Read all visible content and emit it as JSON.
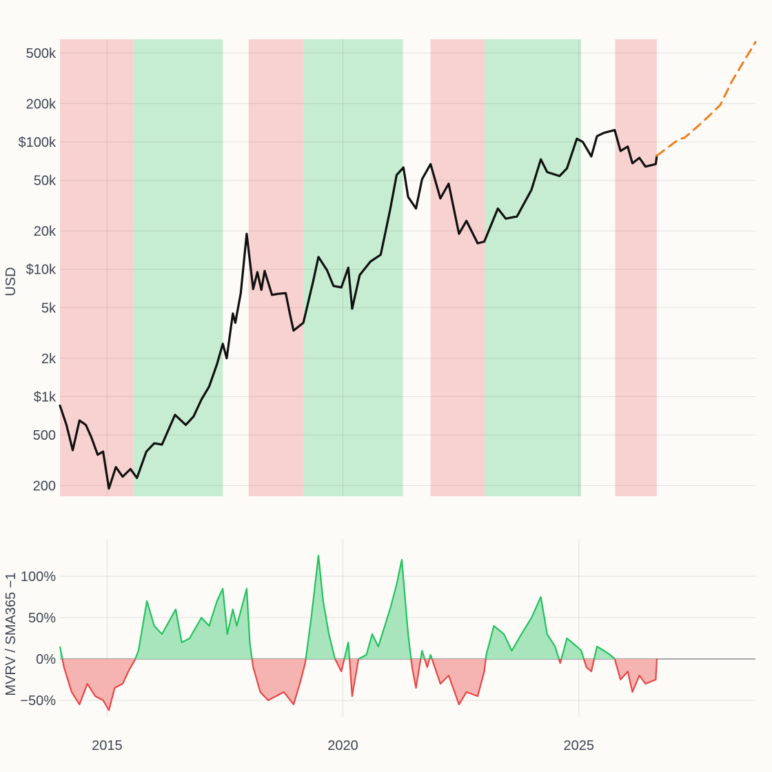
{
  "chart_data": [
    {
      "type": "line",
      "ylabel": "USD",
      "yscale": "log",
      "ylim": [
        165,
        640000
      ],
      "xlim": [
        "2014-01-01",
        "2028-09-30"
      ],
      "yticks": [
        {
          "value": 200,
          "label": "200"
        },
        {
          "value": 500,
          "label": "500"
        },
        {
          "value": 1000,
          "label": "$1k"
        },
        {
          "value": 2000,
          "label": "2k"
        },
        {
          "value": 5000,
          "label": "5k"
        },
        {
          "value": 10000,
          "label": "$10k"
        },
        {
          "value": 20000,
          "label": "20k"
        },
        {
          "value": 50000,
          "label": "50k"
        },
        {
          "value": 100000,
          "label": "$100k"
        },
        {
          "value": 200000,
          "label": "200k"
        },
        {
          "value": 500000,
          "label": "500k"
        }
      ],
      "regions": [
        {
          "start": "2014-01-01",
          "end": "2015-07-25",
          "phase": "bear",
          "color": "#f8d2d0"
        },
        {
          "start": "2015-07-25",
          "end": "2017-06-15",
          "phase": "bull",
          "color": "#c6edd2"
        },
        {
          "start": "2018-01-01",
          "end": "2019-03-01",
          "phase": "bear",
          "color": "#f8d2d0"
        },
        {
          "start": "2019-03-01",
          "end": "2021-04-10",
          "phase": "bull",
          "color": "#c6edd2"
        },
        {
          "start": "2021-11-10",
          "end": "2023-01-05",
          "phase": "bear",
          "color": "#f8d2d0"
        },
        {
          "start": "2023-01-05",
          "end": "2025-01-20",
          "phase": "bull",
          "color": "#c6edd2"
        },
        {
          "start": "2025-10-10",
          "end": "2026-08-28",
          "phase": "bear",
          "color": "#f8d2d0"
        }
      ],
      "series": [
        {
          "style": "solid",
          "color": "#111111",
          "points": [
            [
              "2014-01-01",
              850
            ],
            [
              "2014-02-20",
              600
            ],
            [
              "2014-04-10",
              380
            ],
            [
              "2014-06-01",
              650
            ],
            [
              "2014-07-20",
              600
            ],
            [
              "2014-09-01",
              480
            ],
            [
              "2014-10-20",
              350
            ],
            [
              "2014-12-01",
              370
            ],
            [
              "2015-01-15",
              190
            ],
            [
              "2015-03-10",
              280
            ],
            [
              "2015-05-01",
              235
            ],
            [
              "2015-07-01",
              270
            ],
            [
              "2015-08-20",
              230
            ],
            [
              "2015-11-01",
              370
            ],
            [
              "2016-01-01",
              430
            ],
            [
              "2016-03-01",
              420
            ],
            [
              "2016-06-10",
              720
            ],
            [
              "2016-09-01",
              600
            ],
            [
              "2016-11-01",
              700
            ],
            [
              "2017-01-01",
              950
            ],
            [
              "2017-03-01",
              1200
            ],
            [
              "2017-05-01",
              1800
            ],
            [
              "2017-06-15",
              2600
            ],
            [
              "2017-07-15",
              2000
            ],
            [
              "2017-09-01",
              4500
            ],
            [
              "2017-09-20",
              3800
            ],
            [
              "2017-11-01",
              6500
            ],
            [
              "2017-12-17",
              19000
            ],
            [
              "2018-02-05",
              7000
            ],
            [
              "2018-03-10",
              9500
            ],
            [
              "2018-04-10",
              6900
            ],
            [
              "2018-05-05",
              9700
            ],
            [
              "2018-07-01",
              6300
            ],
            [
              "2018-08-10",
              6400
            ],
            [
              "2018-10-15",
              6500
            ],
            [
              "2018-11-20",
              4300
            ],
            [
              "2018-12-15",
              3300
            ],
            [
              "2019-03-01",
              3800
            ],
            [
              "2019-05-15",
              8000
            ],
            [
              "2019-06-26",
              12500
            ],
            [
              "2019-09-01",
              9800
            ],
            [
              "2019-10-20",
              7400
            ],
            [
              "2019-12-20",
              7200
            ],
            [
              "2020-02-12",
              10300
            ],
            [
              "2020-03-13",
              4900
            ],
            [
              "2020-05-10",
              9000
            ],
            [
              "2020-08-01",
              11500
            ],
            [
              "2020-10-20",
              13000
            ],
            [
              "2020-12-31",
              29000
            ],
            [
              "2021-02-20",
              55000
            ],
            [
              "2021-04-14",
              63000
            ],
            [
              "2021-05-20",
              37000
            ],
            [
              "2021-07-20",
              30000
            ],
            [
              "2021-09-05",
              51000
            ],
            [
              "2021-11-10",
              67000
            ],
            [
              "2022-01-25",
              36000
            ],
            [
              "2022-03-30",
              47000
            ],
            [
              "2022-06-18",
              19000
            ],
            [
              "2022-08-15",
              24000
            ],
            [
              "2022-11-10",
              16000
            ],
            [
              "2022-12-31",
              16500
            ],
            [
              "2023-04-15",
              30000
            ],
            [
              "2023-06-15",
              25000
            ],
            [
              "2023-09-10",
              26000
            ],
            [
              "2023-12-31",
              42000
            ],
            [
              "2024-03-13",
              73000
            ],
            [
              "2024-05-01",
              58000
            ],
            [
              "2024-08-05",
              54000
            ],
            [
              "2024-10-01",
              62000
            ],
            [
              "2024-12-17",
              106000
            ],
            [
              "2025-02-01",
              100000
            ],
            [
              "2025-04-08",
              77000
            ],
            [
              "2025-05-22",
              111000
            ],
            [
              "2025-07-15",
              118000
            ],
            [
              "2025-10-06",
              124000
            ],
            [
              "2025-11-20",
              85000
            ],
            [
              "2026-01-15",
              92000
            ],
            [
              "2026-02-20",
              68000
            ],
            [
              "2026-04-15",
              75000
            ],
            [
              "2026-06-01",
              64000
            ],
            [
              "2026-08-20",
              67000
            ],
            [
              "2026-08-28",
              78000
            ]
          ]
        },
        {
          "style": "dashed",
          "color": "#ee7f1d",
          "points": [
            [
              "2026-08-28",
              78000
            ],
            [
              "2027-02-15",
              105000
            ],
            [
              "2027-04-01",
              108000
            ],
            [
              "2027-07-01",
              130000
            ],
            [
              "2027-10-01",
              158000
            ],
            [
              "2028-01-01",
              195000
            ],
            [
              "2028-04-01",
              300000
            ],
            [
              "2028-09-30",
              610000
            ]
          ]
        }
      ]
    },
    {
      "type": "area",
      "ylabel": "MVRV / SMA365 −1",
      "ylim": [
        -70,
        145
      ],
      "xlim": [
        "2014-01-01",
        "2028-09-30"
      ],
      "xticks": [
        {
          "value": "2015-01-01",
          "label": "2015"
        },
        {
          "value": "2020-01-01",
          "label": "2020"
        },
        {
          "value": "2025-01-01",
          "label": "2025"
        }
      ],
      "yticks": [
        {
          "value": -50,
          "label": "−50%"
        },
        {
          "value": 0,
          "label": "0%"
        },
        {
          "value": 50,
          "label": "50%"
        },
        {
          "value": 100,
          "label": "100%"
        }
      ],
      "positive_color": "#21c25e",
      "negative_color": "#e84545",
      "positive_fill": "#a3e3b8",
      "negative_fill": "#f4b0ad",
      "points": [
        [
          "2014-01-01",
          15
        ],
        [
          "2014-02-01",
          -10
        ],
        [
          "2014-04-01",
          -40
        ],
        [
          "2014-06-01",
          -55
        ],
        [
          "2014-08-01",
          -30
        ],
        [
          "2014-10-01",
          -45
        ],
        [
          "2014-12-01",
          -50
        ],
        [
          "2015-01-15",
          -62
        ],
        [
          "2015-03-01",
          -35
        ],
        [
          "2015-05-01",
          -30
        ],
        [
          "2015-06-15",
          -15
        ],
        [
          "2015-08-01",
          -2
        ],
        [
          "2015-09-01",
          10
        ],
        [
          "2015-11-05",
          70
        ],
        [
          "2016-01-01",
          40
        ],
        [
          "2016-03-01",
          30
        ],
        [
          "2016-06-15",
          60
        ],
        [
          "2016-08-01",
          20
        ],
        [
          "2016-10-01",
          25
        ],
        [
          "2017-01-01",
          50
        ],
        [
          "2017-03-01",
          40
        ],
        [
          "2017-05-01",
          70
        ],
        [
          "2017-06-15",
          85
        ],
        [
          "2017-07-20",
          30
        ],
        [
          "2017-09-01",
          60
        ],
        [
          "2017-10-01",
          40
        ],
        [
          "2017-12-17",
          85
        ],
        [
          "2018-01-10",
          20
        ],
        [
          "2018-02-05",
          -10
        ],
        [
          "2018-04-01",
          -40
        ],
        [
          "2018-06-01",
          -50
        ],
        [
          "2018-08-01",
          -45
        ],
        [
          "2018-10-01",
          -40
        ],
        [
          "2018-12-15",
          -55
        ],
        [
          "2019-02-01",
          -30
        ],
        [
          "2019-03-15",
          -5
        ],
        [
          "2019-05-01",
          50
        ],
        [
          "2019-06-26",
          125
        ],
        [
          "2019-08-01",
          70
        ],
        [
          "2019-09-15",
          30
        ],
        [
          "2019-11-01",
          0
        ],
        [
          "2019-12-20",
          -15
        ],
        [
          "2020-02-12",
          20
        ],
        [
          "2020-03-13",
          -45
        ],
        [
          "2020-05-01",
          0
        ],
        [
          "2020-07-01",
          5
        ],
        [
          "2020-08-15",
          30
        ],
        [
          "2020-10-01",
          15
        ],
        [
          "2020-12-31",
          60
        ],
        [
          "2021-02-20",
          90
        ],
        [
          "2021-04-01",
          120
        ],
        [
          "2021-05-20",
          30
        ],
        [
          "2021-06-20",
          -10
        ],
        [
          "2021-07-20",
          -35
        ],
        [
          "2021-09-05",
          10
        ],
        [
          "2021-10-15",
          -10
        ],
        [
          "2021-11-10",
          5
        ],
        [
          "2022-01-25",
          -30
        ],
        [
          "2022-03-30",
          -20
        ],
        [
          "2022-06-18",
          -55
        ],
        [
          "2022-08-15",
          -40
        ],
        [
          "2022-11-10",
          -45
        ],
        [
          "2022-12-31",
          -15
        ],
        [
          "2023-01-15",
          5
        ],
        [
          "2023-03-15",
          40
        ],
        [
          "2023-06-01",
          30
        ],
        [
          "2023-08-01",
          10
        ],
        [
          "2023-10-15",
          30
        ],
        [
          "2024-01-01",
          50
        ],
        [
          "2024-03-13",
          75
        ],
        [
          "2024-05-01",
          30
        ],
        [
          "2024-07-01",
          15
        ],
        [
          "2024-08-10",
          -5
        ],
        [
          "2024-10-01",
          25
        ],
        [
          "2024-12-17",
          15
        ],
        [
          "2025-01-20",
          10
        ],
        [
          "2025-03-01",
          -10
        ],
        [
          "2025-04-08",
          -15
        ],
        [
          "2025-05-22",
          15
        ],
        [
          "2025-07-15",
          10
        ],
        [
          "2025-09-01",
          5
        ],
        [
          "2025-10-06",
          0
        ],
        [
          "2025-11-20",
          -25
        ],
        [
          "2026-01-15",
          -15
        ],
        [
          "2026-02-20",
          -40
        ],
        [
          "2026-04-15",
          -20
        ],
        [
          "2026-06-01",
          -30
        ],
        [
          "2026-08-20",
          -25
        ],
        [
          "2026-08-28",
          0
        ]
      ]
    }
  ]
}
